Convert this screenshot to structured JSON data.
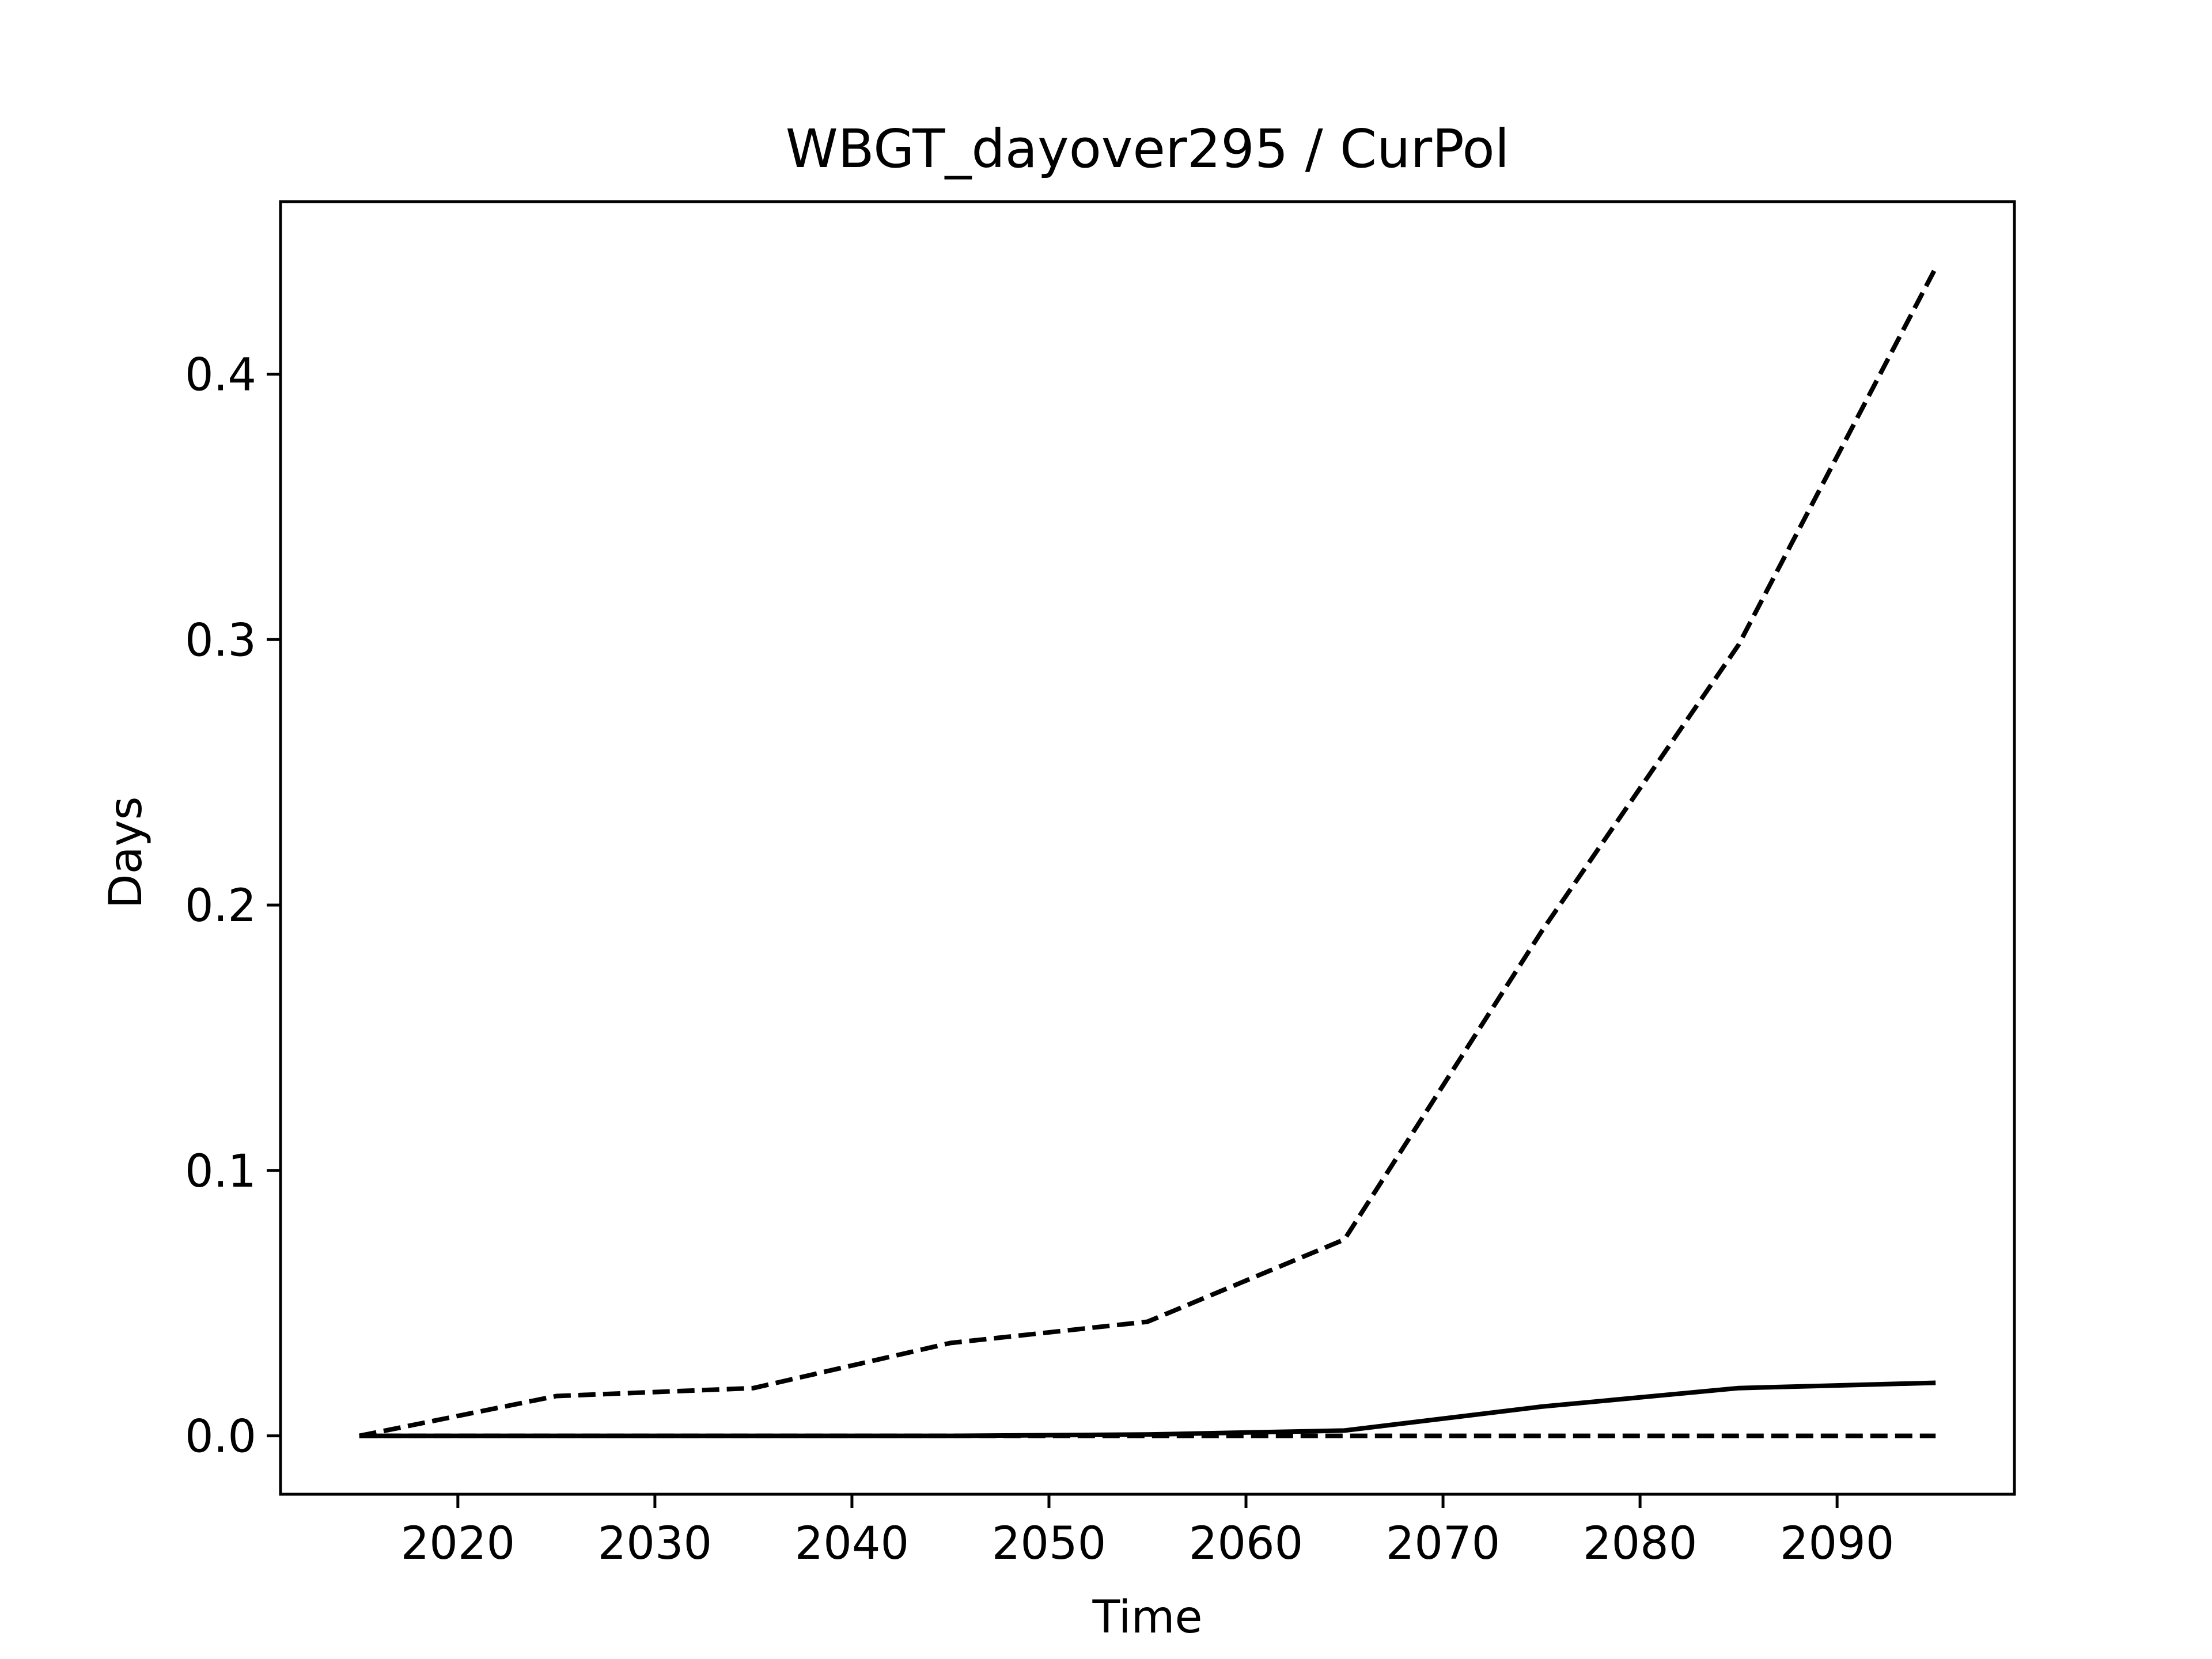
{
  "chart_data": {
    "type": "line",
    "title": "WBGT_dayover295 / CurPol",
    "xlabel": "Time",
    "ylabel": "Days",
    "xlim": [
      2011,
      2099
    ],
    "ylim": [
      -0.022,
      0.465
    ],
    "x_ticks": [
      2020,
      2030,
      2040,
      2050,
      2060,
      2070,
      2080,
      2090
    ],
    "y_ticks": [
      0.0,
      0.1,
      0.2,
      0.3,
      0.4
    ],
    "y_tick_labels": [
      "0.0",
      "0.1",
      "0.2",
      "0.3",
      "0.4"
    ],
    "x": [
      2015,
      2025,
      2035,
      2045,
      2055,
      2065,
      2075,
      2085,
      2095
    ],
    "grid": false,
    "legend": false,
    "series": [
      {
        "style": "dashed",
        "color": "#000000",
        "values": [
          0.0,
          0.015,
          0.018,
          0.035,
          0.043,
          0.074,
          0.19,
          0.298,
          0.44
        ]
      },
      {
        "style": "solid",
        "color": "#000000",
        "values": [
          0.0,
          0.0,
          0.0,
          0.0,
          0.0005,
          0.002,
          0.011,
          0.018,
          0.02
        ]
      },
      {
        "style": "dashed",
        "color": "#000000",
        "values": [
          0.0,
          0.0,
          0.0,
          0.0,
          0.0,
          0.0,
          0.0,
          0.0,
          0.0
        ]
      }
    ]
  }
}
